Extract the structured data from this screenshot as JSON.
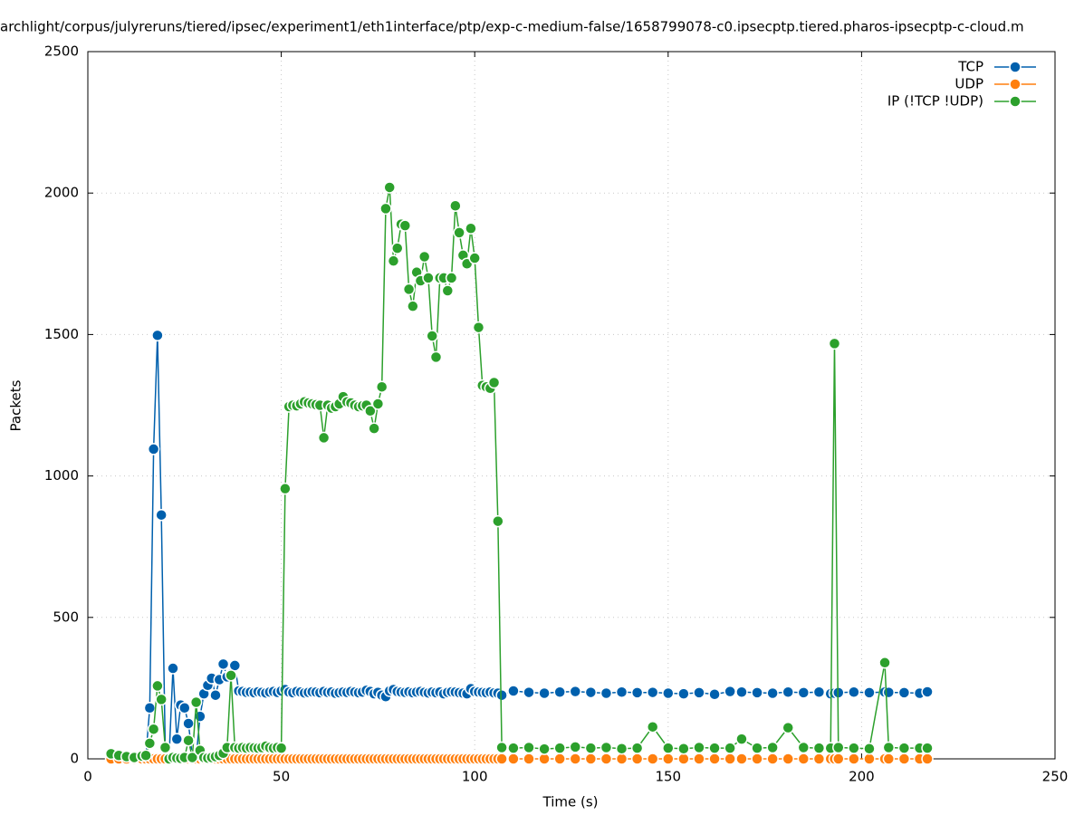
{
  "chart_data": {
    "type": "line",
    "title": "archlight/corpus/julyreruns/tiered/ipsec/experiment1/eth1interface/ptp/exp-c-medium-false/1658799078-c0.ipsecptp.tiered.pharos-ipsecptp-c-cloud.m",
    "xlabel": "Time (s)",
    "ylabel": "Packets",
    "xlim": [
      0,
      250
    ],
    "xticks": [
      0,
      50,
      100,
      150,
      200,
      250
    ],
    "ylim": [
      0,
      2500
    ],
    "yticks": [
      0,
      500,
      1000,
      1500,
      2000,
      2500
    ],
    "grid": true,
    "legend": "upper right",
    "x": [
      6,
      8,
      10,
      12,
      14,
      15,
      16,
      17,
      18,
      19,
      20,
      21,
      22,
      23,
      24,
      25,
      26,
      27,
      28,
      29,
      30,
      31,
      32,
      33,
      34,
      35,
      36,
      37,
      38,
      39,
      40,
      41,
      42,
      43,
      44,
      45,
      46,
      47,
      48,
      49,
      50,
      51,
      52,
      53,
      54,
      55,
      56,
      57,
      58,
      59,
      60,
      61,
      62,
      63,
      64,
      65,
      66,
      67,
      68,
      69,
      70,
      71,
      72,
      73,
      74,
      75,
      76,
      77,
      78,
      79,
      80,
      81,
      82,
      83,
      84,
      85,
      86,
      87,
      88,
      89,
      90,
      91,
      92,
      93,
      94,
      95,
      96,
      97,
      98,
      99,
      100,
      101,
      102,
      103,
      104,
      105,
      106,
      107,
      110,
      114,
      118,
      122,
      126,
      130,
      134,
      138,
      142,
      146,
      150,
      154,
      158,
      162,
      166,
      169,
      173,
      177,
      181,
      185,
      189,
      192,
      193,
      194,
      198,
      202,
      206,
      207,
      211,
      215,
      217
    ],
    "series": [
      {
        "name": "TCP",
        "color": "#0060ad",
        "values": [
          0,
          5,
          3,
          0,
          2,
          10,
          180,
          1095,
          1497,
          862,
          40,
          5,
          320,
          70,
          190,
          180,
          125,
          10,
          5,
          150,
          230,
          260,
          285,
          225,
          280,
          335,
          290,
          300,
          330,
          240,
          238,
          235,
          236,
          234,
          237,
          235,
          233,
          236,
          238,
          235,
          240,
          245,
          236,
          234,
          238,
          236,
          233,
          235,
          237,
          236,
          234,
          238,
          235,
          236,
          232,
          234,
          236,
          235,
          238,
          236,
          234,
          236,
          242,
          238,
          230,
          235,
          225,
          220,
          240,
          245,
          238,
          236,
          235,
          237,
          234,
          236,
          238,
          235,
          233,
          236,
          234,
          236,
          230,
          235,
          237,
          236,
          234,
          232,
          230,
          248,
          238,
          236,
          235,
          234,
          236,
          233,
          232,
          225,
          240,
          235,
          232,
          236,
          238,
          235,
          232,
          236,
          234,
          235,
          232,
          230,
          234,
          228,
          238,
          236,
          234,
          232,
          236,
          234,
          236,
          230,
          232,
          234,
          236,
          234,
          236,
          235,
          234,
          232,
          237
        ]
      },
      {
        "name": "UDP",
        "color": "#ff7f0e",
        "values": [
          0,
          0,
          0,
          0,
          0,
          0,
          0,
          0,
          0,
          0,
          0,
          0,
          0,
          0,
          0,
          0,
          0,
          0,
          0,
          0,
          0,
          0,
          0,
          0,
          0,
          0,
          0,
          0,
          0,
          0,
          0,
          0,
          0,
          0,
          0,
          0,
          0,
          0,
          0,
          0,
          0,
          0,
          0,
          0,
          0,
          0,
          0,
          0,
          0,
          0,
          0,
          0,
          0,
          0,
          0,
          0,
          0,
          0,
          0,
          0,
          0,
          0,
          0,
          0,
          0,
          0,
          0,
          0,
          0,
          0,
          0,
          0,
          0,
          0,
          0,
          0,
          0,
          0,
          0,
          0,
          0,
          0,
          0,
          0,
          0,
          0,
          0,
          0,
          0,
          0,
          0,
          0,
          0,
          0,
          0,
          0,
          0,
          0,
          0,
          0,
          0,
          0,
          0,
          0,
          0,
          0,
          0,
          0,
          0,
          0,
          0,
          0,
          0,
          0,
          0,
          0,
          0,
          0,
          0,
          0,
          0,
          0,
          0,
          0,
          0,
          0,
          0,
          0,
          0
        ]
      },
      {
        "name": "IP (!TCP  !UDP)",
        "color": "#2ca02c",
        "values": [
          18,
          12,
          8,
          5,
          10,
          12,
          55,
          105,
          258,
          210,
          40,
          0,
          5,
          3,
          2,
          5,
          65,
          5,
          200,
          30,
          5,
          3,
          5,
          8,
          12,
          20,
          40,
          295,
          40,
          38,
          40,
          38,
          40,
          39,
          38,
          40,
          45,
          40,
          38,
          40,
          38,
          955,
          1245,
          1250,
          1248,
          1255,
          1262,
          1258,
          1255,
          1252,
          1250,
          1135,
          1250,
          1240,
          1245,
          1255,
          1280,
          1262,
          1258,
          1250,
          1245,
          1248,
          1250,
          1230,
          1168,
          1255,
          1315,
          1945,
          2020,
          1760,
          1805,
          1890,
          1885,
          1660,
          1600,
          1720,
          1690,
          1775,
          1700,
          1495,
          1420,
          1700,
          1700,
          1655,
          1700,
          1955,
          1860,
          1780,
          1750,
          1875,
          1770,
          1525,
          1320,
          1315,
          1310,
          1330,
          840,
          40,
          38,
          40,
          35,
          38,
          42,
          38,
          40,
          36,
          38,
          113,
          38,
          36,
          40,
          38,
          38,
          70,
          38,
          40,
          110,
          40,
          38,
          38,
          1468,
          40,
          38,
          36,
          340,
          40,
          38,
          38,
          38
        ]
      }
    ]
  }
}
